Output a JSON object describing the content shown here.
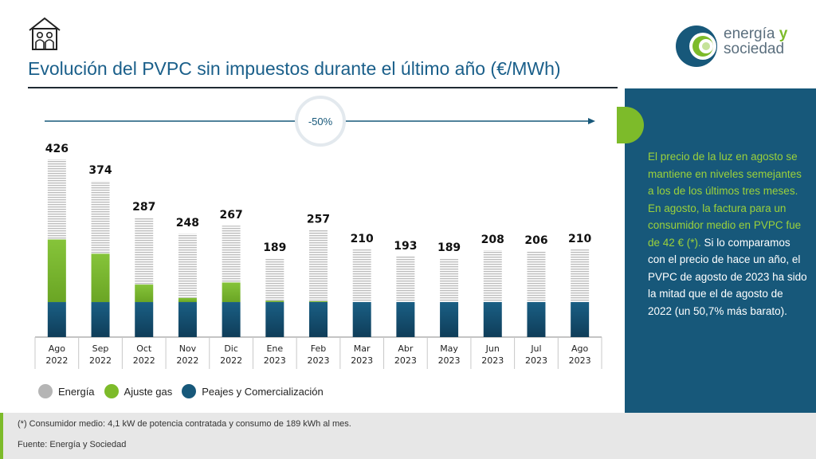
{
  "header": {
    "title": "Evolución del PVPC sin impuestos durante el último año (€/MWh)",
    "house_icon": "family-house-icon"
  },
  "logo": {
    "line1": "energía",
    "y": "y",
    "line2": "sociedad"
  },
  "panel": {
    "green_text": "El precio de la luz en agosto se mantiene en niveles semejantes a los de los últimos tres meses.  En agosto, la factura para un consumidor medio en PVPC fue de 42 € (*).",
    "white_text": " Si lo comparamos con el precio de hace un año, el PVPC de agosto de 2023 ha sido la mitad que el de agosto de 2022 (un 50,7% más barato)."
  },
  "legend": [
    {
      "label": "Energía",
      "color": "#b5b5b5"
    },
    {
      "label": "Ajuste gas",
      "color": "#7dbb2a"
    },
    {
      "label": "Peajes y Comercialización",
      "color": "#17587a"
    }
  ],
  "footer": {
    "note": "(*) Consumidor medio: 4,1 kW de potencia contratada y consumo de 189 kWh al mes.",
    "source": "Fuente: Energía y Sociedad"
  },
  "colors": {
    "energy": "#c8c8c8",
    "gas": "#7dbb2a",
    "tolls": "#17587a",
    "accent": "#1a5f8a"
  },
  "chart_data": {
    "type": "bar",
    "stacked": true,
    "categories": [
      "Ago 2022",
      "Sep 2022",
      "Oct 2022",
      "Nov 2022",
      "Dic 2022",
      "Ene 2023",
      "Feb 2023",
      "Mar 2023",
      "Abr 2023",
      "May 2023",
      "Jun 2023",
      "Jul 2023",
      "Ago 2023"
    ],
    "category_labels": [
      [
        "Ago",
        "2022"
      ],
      [
        "Sep",
        "2022"
      ],
      [
        "Oct",
        "2022"
      ],
      [
        "Nov",
        "2022"
      ],
      [
        "Dic",
        "2022"
      ],
      [
        "Ene",
        "2023"
      ],
      [
        "Feb",
        "2023"
      ],
      [
        "Mar",
        "2023"
      ],
      [
        "Abr",
        "2023"
      ],
      [
        "May",
        "2023"
      ],
      [
        "Jun",
        "2023"
      ],
      [
        "Jul",
        "2023"
      ],
      [
        "Ago",
        "2023"
      ]
    ],
    "series": [
      {
        "name": "Peajes y Comercialización",
        "values": [
          84,
          84,
          84,
          84,
          84,
          84,
          84,
          84,
          84,
          84,
          84,
          84,
          84
        ]
      },
      {
        "name": "Ajuste gas",
        "values": [
          150,
          116,
          42,
          10,
          47,
          3,
          2,
          0,
          0,
          0,
          0,
          0,
          0
        ]
      },
      {
        "name": "Energía",
        "values": [
          192,
          174,
          161,
          154,
          136,
          102,
          171,
          126,
          109,
          105,
          124,
          122,
          126
        ]
      }
    ],
    "totals": [
      426,
      374,
      287,
      248,
      267,
      189,
      257,
      210,
      193,
      189,
      208,
      206,
      210
    ],
    "change_label": "-50%",
    "ylim": [
      0,
      426
    ]
  }
}
